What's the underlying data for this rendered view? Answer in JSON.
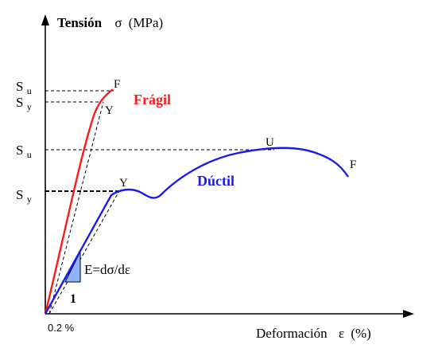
{
  "axes": {
    "y_label": "Tensión",
    "y_symbol": "σ",
    "y_unit": "(MPa)",
    "x_label": "Deformación",
    "x_symbol": "ε",
    "x_unit": "(%)",
    "offset_label": "0.2 %"
  },
  "levels": {
    "su_brittle": {
      "base": "S",
      "sub": "u"
    },
    "sy_brittle": {
      "base": "S",
      "sub": "y"
    },
    "su_ductile": {
      "base": "S",
      "sub": "u"
    },
    "sy_ductile": {
      "base": "S",
      "sub": "y"
    }
  },
  "curves": {
    "brittle": {
      "name": "Frágil",
      "color": "#ff1a1a"
    },
    "ductile": {
      "name": "Dúctil",
      "color": "#1a1aee"
    }
  },
  "points": {
    "brittle_fracture": "F",
    "brittle_yield": "Y",
    "ductile_ultimate": "U",
    "ductile_yield": "Y",
    "ductile_fracture": "F"
  },
  "modulus": {
    "equation": "E=dσ/dε",
    "run_label": "1",
    "fill": "#8fb3ff"
  }
}
